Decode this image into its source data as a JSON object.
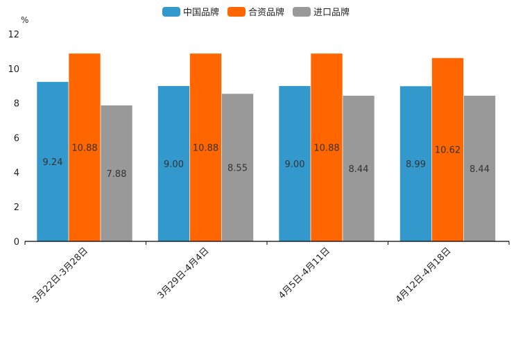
{
  "chart_data": {
    "type": "bar",
    "unit_label": "%",
    "categories": [
      "3月22日-3月28日",
      "3月29日-4月4日",
      "4月5日-4月11日",
      "4月12日-4月18日"
    ],
    "series": [
      {
        "name": "中国品牌",
        "color": "#3399cc",
        "values": [
          9.24,
          9.0,
          9.0,
          8.99
        ]
      },
      {
        "name": "合资品牌",
        "color": "#ff6600",
        "values": [
          10.88,
          10.88,
          10.88,
          10.62
        ]
      },
      {
        "name": "进口品牌",
        "color": "#999999",
        "values": [
          7.88,
          8.55,
          8.44,
          8.44
        ]
      }
    ],
    "value_labels": [
      [
        "9.24",
        "9.00",
        "9.00",
        "8.99"
      ],
      [
        "10.88",
        "10.88",
        "10.88",
        "10.62"
      ],
      [
        "7.88",
        "8.55",
        "8.44",
        "8.44"
      ]
    ],
    "ylim": [
      0,
      12
    ],
    "yticks": [
      "0",
      "2",
      "4",
      "6",
      "8",
      "10",
      "12"
    ],
    "legend_position": "top-center"
  }
}
